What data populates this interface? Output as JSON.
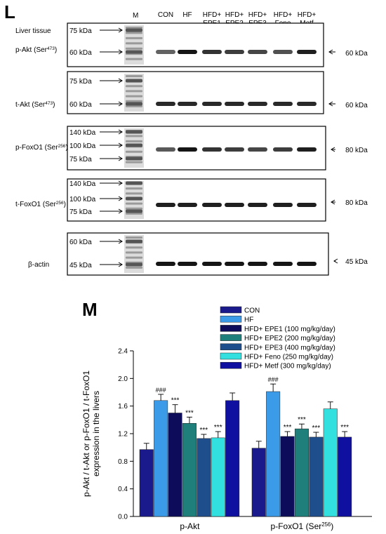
{
  "panel_L": {
    "letter": "L",
    "tissue_label": "Liver tissue",
    "marker_label": "M",
    "lane_labels": [
      {
        "line1": "CON",
        "line2": ""
      },
      {
        "line1": "HF",
        "line2": ""
      },
      {
        "line1": "HFD+",
        "line2": "EPE1"
      },
      {
        "line1": "HFD+",
        "line2": "EPE2"
      },
      {
        "line1": "HFD+",
        "line2": "EPE3"
      },
      {
        "line1": "HFD+",
        "line2": "Feno"
      },
      {
        "line1": "HFD+",
        "line2": "Metf"
      }
    ],
    "blots": [
      {
        "name": "p-Akt",
        "label": "p-Akt (Ser",
        "sup": "473",
        "markers": [
          "75 kDa",
          "60 kDa"
        ],
        "right_label": "60 kDa",
        "intensity": [
          0.55,
          0.95,
          0.8,
          0.75,
          0.7,
          0.65,
          0.9
        ]
      },
      {
        "name": "t-Akt",
        "label": "t-Akt (Ser",
        "sup": "473",
        "markers": [
          "75 kDa",
          "60 kDa"
        ],
        "right_label": "60 kDa",
        "intensity": [
          0.85,
          0.85,
          0.85,
          0.85,
          0.85,
          0.85,
          0.85
        ]
      },
      {
        "name": "p-FoxO1",
        "label": "p-FoxO1 (Ser",
        "sup": "256",
        "markers": [
          "140 kDa",
          "100 kDa",
          "75 kDa"
        ],
        "right_label": "80 kDa",
        "intensity": [
          0.6,
          0.95,
          0.8,
          0.75,
          0.7,
          0.75,
          0.9
        ]
      },
      {
        "name": "t-FoxO1",
        "label": "t-FoxO1 (Ser",
        "sup": "256",
        "markers": [
          "140 kDa",
          "100 kDa",
          "75 kDa"
        ],
        "right_label": "80 kDa",
        "intensity": [
          0.9,
          0.9,
          0.9,
          0.9,
          0.9,
          0.9,
          0.9
        ]
      },
      {
        "name": "beta-actin",
        "label": "β-actin",
        "sup": "",
        "markers": [
          "60 kDa",
          "45 kDa"
        ],
        "right_label": "45 kDa",
        "intensity": [
          0.95,
          0.95,
          0.95,
          0.95,
          0.95,
          0.95,
          0.95
        ]
      }
    ]
  },
  "panel_M": {
    "letter": "M"
  },
  "chart_data": {
    "type": "bar",
    "ylabel_lines": [
      "p-Akt / t-Akt or p-FoxO1 / t-FoxO1",
      "expression in the livers"
    ],
    "ylim": [
      0.0,
      2.4
    ],
    "yticks": [
      "0.0",
      "0.4",
      "0.8",
      "1.2",
      "1.6",
      "2.0",
      "2.4"
    ],
    "categories": [
      {
        "text": "p-Akt",
        "sup": "",
        "tail": ""
      },
      {
        "text": "p-FoxO1 (Ser",
        "sup": "256",
        "tail": ")"
      }
    ],
    "legend_position": "top-right",
    "series": [
      {
        "name": "CON",
        "color": "#1a1a8c",
        "values": [
          0.97,
          0.99
        ],
        "errors": [
          0.09,
          0.1
        ],
        "marks": [
          "",
          ""
        ]
      },
      {
        "name": "HF",
        "color": "#3c9be8",
        "values": [
          1.68,
          1.81
        ],
        "errors": [
          0.09,
          0.11
        ],
        "marks": [
          "###",
          "###"
        ]
      },
      {
        "name": "HFD+ EPE1 (100 mg/kg/day)",
        "color": "#0c0c5a",
        "values": [
          1.5,
          1.16
        ],
        "errors": [
          0.12,
          0.07
        ],
        "marks": [
          "***",
          "***"
        ]
      },
      {
        "name": "HFD+ EPE2 (200 mg/kg/day)",
        "color": "#1f7f7a",
        "values": [
          1.35,
          1.27
        ],
        "errors": [
          0.09,
          0.07
        ],
        "marks": [
          "***",
          "***"
        ]
      },
      {
        "name": "HFD+ EPE3 (400 mg/kg/day)",
        "color": "#1f4e8c",
        "values": [
          1.13,
          1.15
        ],
        "errors": [
          0.06,
          0.07
        ],
        "marks": [
          "***",
          "***"
        ]
      },
      {
        "name": "HFD+ Feno (250 mg/kg/day)",
        "color": "#33e0e0",
        "values": [
          1.14,
          1.56
        ],
        "errors": [
          0.09,
          0.1
        ],
        "marks": [
          "***",
          ""
        ]
      },
      {
        "name": "HFD+ Metf (300 mg/kg/day)",
        "color": "#1010a0",
        "values": [
          1.68,
          1.15
        ],
        "errors": [
          0.11,
          0.08
        ],
        "marks": [
          "",
          "***"
        ]
      }
    ]
  }
}
